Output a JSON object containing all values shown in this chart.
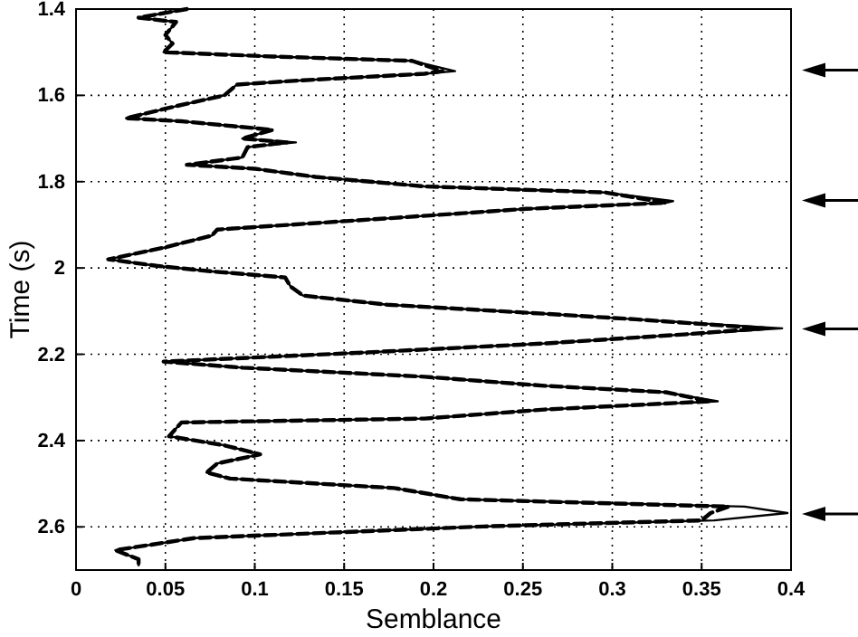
{
  "chart_data": {
    "type": "line",
    "xlabel": "Semblance",
    "ylabel": "Time (s)",
    "xlim": [
      0,
      0.4
    ],
    "xticks": [
      0,
      0.05,
      0.1,
      0.15,
      0.2,
      0.25,
      0.3,
      0.35,
      0.4
    ],
    "ylim": [
      2.7,
      1.4
    ],
    "yticks": [
      1.4,
      1.6,
      1.8,
      2,
      2.2,
      2.4,
      2.6
    ],
    "grid": true,
    "series": [
      {
        "color": "#000000",
        "line_style": "solid",
        "x": [
          0.062,
          0.035,
          0.056,
          0.05,
          0.054,
          0.049,
          0.11,
          0.188,
          0.212,
          0.195,
          0.127,
          0.09,
          0.083,
          0.056,
          0.028,
          0.059,
          0.11,
          0.093,
          0.123,
          0.096,
          0.093,
          0.062,
          0.1,
          0.134,
          0.195,
          0.296,
          0.334,
          0.33,
          0.252,
          0.178,
          0.079,
          0.076,
          0.049,
          0.018,
          0.045,
          0.076,
          0.117,
          0.12,
          0.127,
          0.174,
          0.262,
          0.313,
          0.395,
          0.34,
          0.262,
          0.161,
          0.049,
          0.093,
          0.195,
          0.262,
          0.33,
          0.359,
          0.262,
          0.195,
          0.059,
          0.052,
          0.083,
          0.103,
          0.079,
          0.073,
          0.086,
          0.178,
          0.215,
          0.374,
          0.398,
          0.357,
          0.228,
          0.066,
          0.022,
          0.035,
          0.035
        ],
        "values": [
          1.4,
          1.42,
          1.43,
          1.46,
          1.48,
          1.5,
          1.51,
          1.52,
          1.544,
          1.55,
          1.565,
          1.575,
          1.6,
          1.625,
          1.653,
          1.66,
          1.68,
          1.7,
          1.709,
          1.72,
          1.744,
          1.761,
          1.77,
          1.789,
          1.811,
          1.825,
          1.845,
          1.849,
          1.863,
          1.884,
          1.911,
          1.925,
          1.953,
          1.98,
          1.995,
          2.008,
          2.022,
          2.043,
          2.064,
          2.085,
          2.106,
          2.119,
          2.14,
          2.154,
          2.175,
          2.196,
          2.217,
          2.231,
          2.252,
          2.273,
          2.288,
          2.309,
          2.328,
          2.349,
          2.358,
          2.39,
          2.411,
          2.432,
          2.453,
          2.474,
          2.488,
          2.51,
          2.536,
          2.553,
          2.568,
          2.585,
          2.599,
          2.626,
          2.654,
          2.675,
          2.689
        ]
      },
      {
        "color": "#000000",
        "line_style": "dashed",
        "x": [
          0.062,
          0.035,
          0.056,
          0.05,
          0.054,
          0.049,
          0.11,
          0.188,
          0.205,
          0.195,
          0.127,
          0.09,
          0.083,
          0.056,
          0.028,
          0.059,
          0.11,
          0.093,
          0.118,
          0.096,
          0.093,
          0.062,
          0.1,
          0.134,
          0.195,
          0.296,
          0.325,
          0.33,
          0.252,
          0.178,
          0.079,
          0.076,
          0.049,
          0.018,
          0.045,
          0.076,
          0.117,
          0.12,
          0.127,
          0.174,
          0.262,
          0.313,
          0.385,
          0.34,
          0.262,
          0.161,
          0.049,
          0.093,
          0.195,
          0.262,
          0.33,
          0.355,
          0.262,
          0.195,
          0.059,
          0.052,
          0.083,
          0.103,
          0.079,
          0.073,
          0.086,
          0.178,
          0.215,
          0.365,
          0.355,
          0.35,
          0.228,
          0.066,
          0.022,
          0.035,
          0.035
        ],
        "values": [
          1.4,
          1.42,
          1.43,
          1.46,
          1.48,
          1.5,
          1.51,
          1.52,
          1.544,
          1.55,
          1.565,
          1.575,
          1.6,
          1.625,
          1.653,
          1.66,
          1.68,
          1.7,
          1.709,
          1.72,
          1.744,
          1.761,
          1.77,
          1.789,
          1.811,
          1.825,
          1.845,
          1.849,
          1.863,
          1.884,
          1.911,
          1.925,
          1.953,
          1.98,
          1.995,
          2.008,
          2.022,
          2.043,
          2.064,
          2.085,
          2.106,
          2.119,
          2.14,
          2.154,
          2.175,
          2.196,
          2.217,
          2.231,
          2.252,
          2.273,
          2.288,
          2.309,
          2.328,
          2.349,
          2.358,
          2.39,
          2.411,
          2.432,
          2.453,
          2.474,
          2.488,
          2.51,
          2.536,
          2.553,
          2.568,
          2.585,
          2.599,
          2.626,
          2.654,
          2.675,
          2.689
        ]
      }
    ]
  }
}
